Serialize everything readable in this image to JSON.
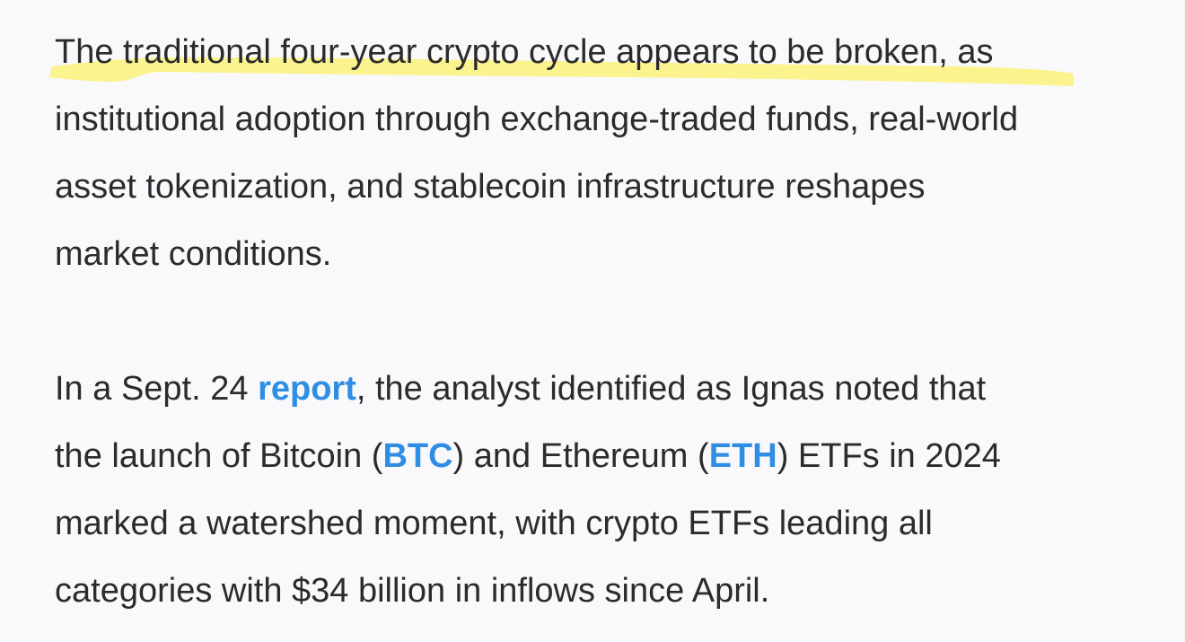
{
  "article": {
    "paragraph1": {
      "line1": "The traditional four-year crypto cycle appears to be broken, as",
      "line2": "institutional adoption through exchange-traded funds, real-world",
      "line3": "asset tokenization, and stablecoin infrastructure reshapes",
      "line4": "market conditions."
    },
    "paragraph2": {
      "line1_before": "In a Sept. 24 ",
      "report_link": "report",
      "line1_after": ", the analyst identified as Ignas noted that",
      "line2_a": "the launch of Bitcoin (",
      "btc_link": "BTC",
      "line2_b": ") and Ethereum (",
      "eth_link": "ETH",
      "line2_c": ") ETFs in 2024",
      "line3": "marked a watershed moment, with crypto ETFs leading all",
      "line4": "categories with $34 billion in inflows since April."
    }
  },
  "colors": {
    "background": "#f9f9fb",
    "text": "#2b2b2e",
    "link": "#2f8ee4",
    "highlighter": "#fbf27a"
  }
}
